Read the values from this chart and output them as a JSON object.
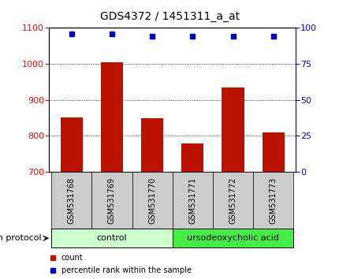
{
  "title": "GDS4372 / 1451311_a_at",
  "samples": [
    "GSM531768",
    "GSM531769",
    "GSM531770",
    "GSM531771",
    "GSM531772",
    "GSM531773"
  ],
  "counts": [
    850,
    1005,
    848,
    778,
    935,
    808
  ],
  "percentiles": [
    96,
    96,
    94,
    94,
    94,
    94
  ],
  "bar_color": "#bb1100",
  "dot_color": "#0000cc",
  "ylim_left": [
    700,
    1100
  ],
  "ylim_right": [
    0,
    100
  ],
  "yticks_left": [
    700,
    800,
    900,
    1000,
    1100
  ],
  "yticks_right": [
    0,
    25,
    50,
    75,
    100
  ],
  "grid_values": [
    800,
    900,
    1000
  ],
  "label_bg": "#cccccc",
  "group_info": [
    {
      "label": "control",
      "start": 0,
      "end": 3,
      "color": "#ccffcc"
    },
    {
      "label": "ursodeoxycholic acid",
      "start": 3,
      "end": 6,
      "color": "#44ee44"
    }
  ],
  "growth_protocol_label": "growth protocol",
  "legend_count": "count",
  "legend_percentile": "percentile rank within the sample",
  "title_fontsize": 10,
  "tick_fontsize": 8,
  "sample_fontsize": 7,
  "group_fontsize": 8,
  "legend_fontsize": 7,
  "gp_fontsize": 8
}
